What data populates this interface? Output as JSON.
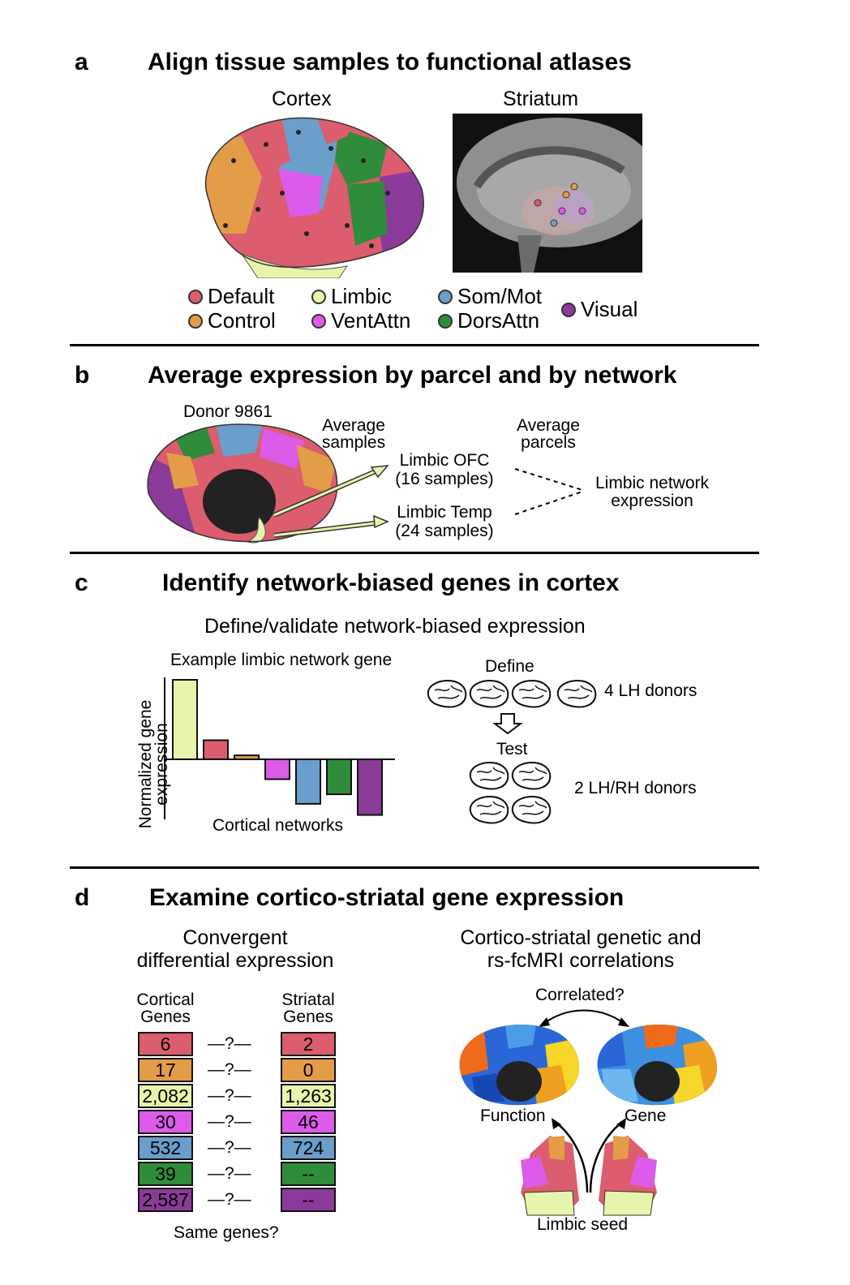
{
  "colors": {
    "default": "#dc5d6d",
    "control": "#e39c47",
    "limbic": "#e6f5ab",
    "somMot": "#6a9ecb",
    "ventAttn": "#dc5be9",
    "dorsAttn": "#2f8c3a",
    "visual": "#8a3a99"
  },
  "panel_a": {
    "letter": "a",
    "title": "Align tissue samples to functional atlases",
    "cortex_label": "Cortex",
    "striatum_label": "Striatum",
    "legend": [
      {
        "label": "Default",
        "color": "default"
      },
      {
        "label": "Control",
        "color": "control"
      },
      {
        "label": "Limbic",
        "color": "limbic"
      },
      {
        "label": "VentAttn",
        "color": "ventAttn"
      },
      {
        "label": "Som/Mot",
        "color": "somMot"
      },
      {
        "label": "DorsAttn",
        "color": "dorsAttn"
      },
      {
        "label": "Visual",
        "color": "visual"
      }
    ]
  },
  "panel_b": {
    "letter": "b",
    "title": "Average expression by parcel and by network",
    "donor": "Donor 9861",
    "avg_samples_1": "Average",
    "avg_samples_2": "samples",
    "avg_parcels_1": "Average",
    "avg_parcels_2": "parcels",
    "ofc_1": "Limbic OFC",
    "ofc_2": "(16 samples)",
    "temp_1": "Limbic Temp",
    "temp_2": "(24 samples)",
    "net_1": "Limbic network",
    "net_2": "expression"
  },
  "panel_c": {
    "letter": "c",
    "title": "Identify network-biased genes in cortex",
    "subtitle": "Define/validate network-biased expression",
    "define": "Define",
    "lh_donors": "4 LH donors",
    "test": "Test",
    "lhrh_donors": "2 LH/RH donors"
  },
  "chart_data": {
    "type": "bar",
    "title": "Example limbic network gene",
    "xlabel": "Cortical networks",
    "ylabel": "Normalized gene expression",
    "categories": [
      "Limbic",
      "Default",
      "Control",
      "VentAttn",
      "Som/Mot",
      "DorsAttn",
      "Visual"
    ],
    "values": [
      1.0,
      0.24,
      0.05,
      -0.25,
      -0.56,
      -0.44,
      -0.7
    ],
    "bar_colors": [
      "limbic",
      "default",
      "control",
      "ventAttn",
      "somMot",
      "dorsAttn",
      "visual"
    ],
    "ylim": [
      -0.75,
      1.0
    ]
  },
  "panel_d": {
    "letter": "d",
    "title": "Examine cortico-striatal gene expression",
    "left_sub_1": "Convergent",
    "left_sub_2": "differential expression",
    "right_sub_1": "Cortico-striatal genetic and",
    "right_sub_2": "rs-fcMRI correlations",
    "cortical_hdr_1": "Cortical",
    "cortical_hdr_2": "Genes",
    "striatal_hdr_1": "Striatal",
    "striatal_hdr_2": "Genes",
    "question": "—?—",
    "same_genes": "Same genes?",
    "correlated": "Correlated?",
    "function": "Function",
    "gene": "Gene",
    "limbic_seed": "Limbic seed",
    "rows": [
      {
        "color": "default",
        "cortical": "6",
        "striatal": "2"
      },
      {
        "color": "control",
        "cortical": "17",
        "striatal": "0"
      },
      {
        "color": "limbic",
        "cortical": "2,082",
        "striatal": "1,263"
      },
      {
        "color": "ventAttn",
        "cortical": "30",
        "striatal": "46"
      },
      {
        "color": "somMot",
        "cortical": "532",
        "striatal": "724"
      },
      {
        "color": "dorsAttn",
        "cortical": "39",
        "striatal": "--"
      },
      {
        "color": "visual",
        "cortical": "2,587",
        "striatal": "--"
      }
    ]
  }
}
